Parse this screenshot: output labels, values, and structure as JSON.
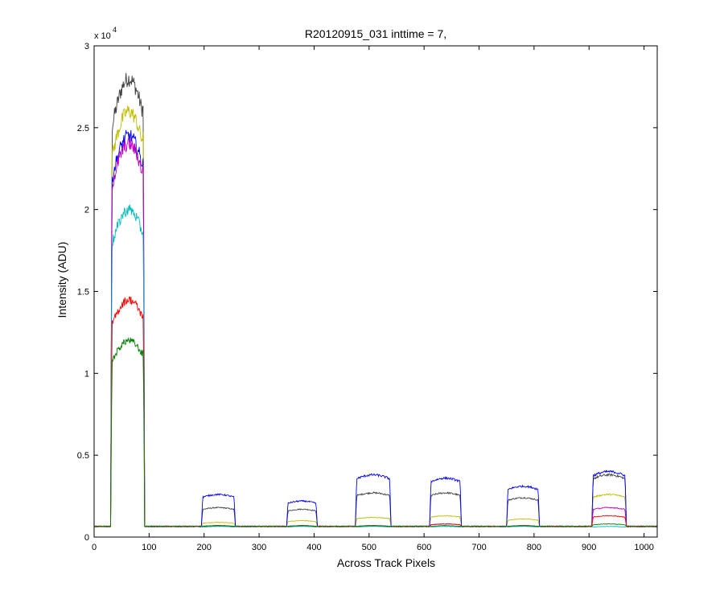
{
  "chart_data": {
    "type": "line",
    "title": "R20120915_031 inttime = 7,",
    "xlabel": "Across Track Pixels",
    "ylabel": "Intensity (ADU)",
    "y_multiplier_base": "x 10",
    "y_multiplier_exp": "4",
    "xlim": [
      0,
      1024
    ],
    "ylim": [
      0,
      30000
    ],
    "x_ticks": [
      0,
      100,
      200,
      300,
      400,
      500,
      600,
      700,
      800,
      900,
      1000
    ],
    "x_tick_labels": [
      "0",
      "100",
      "200",
      "300",
      "400",
      "500",
      "600",
      "700",
      "800",
      "900",
      "1000"
    ],
    "y_ticks": [
      0,
      5000,
      10000,
      15000,
      20000,
      25000,
      30000
    ],
    "y_tick_labels": [
      "0",
      "0.5",
      "1",
      "1.5",
      "2",
      "2.5",
      "3"
    ],
    "grid": false,
    "baseline": 650,
    "segments": [
      [
        30,
        92
      ],
      [
        195,
        257
      ],
      [
        350,
        406
      ],
      [
        475,
        540
      ],
      [
        610,
        668
      ],
      [
        750,
        810
      ],
      [
        905,
        968
      ]
    ],
    "series": [
      {
        "color": "#404040",
        "levels": [
          28000,
          1800,
          1700,
          2700,
          2700,
          2400,
          3800
        ]
      },
      {
        "color": "#bfbf00",
        "levels": [
          26000,
          900,
          1000,
          1200,
          1300,
          1100,
          2600
        ]
      },
      {
        "color": "#0000ff",
        "levels": [
          24500,
          2600,
          2200,
          3800,
          3600,
          3100,
          4000
        ]
      },
      {
        "color": "#bf00bf",
        "levels": [
          24000,
          700,
          700,
          700,
          800,
          700,
          1800
        ]
      },
      {
        "color": "#00bfbf",
        "levels": [
          20000,
          650,
          650,
          650,
          650,
          650,
          650
        ]
      },
      {
        "color": "#ff0000",
        "levels": [
          14500,
          700,
          700,
          700,
          800,
          700,
          1300
        ]
      },
      {
        "color": "#008000",
        "levels": [
          12000,
          700,
          700,
          700,
          700,
          700,
          800
        ]
      }
    ]
  }
}
